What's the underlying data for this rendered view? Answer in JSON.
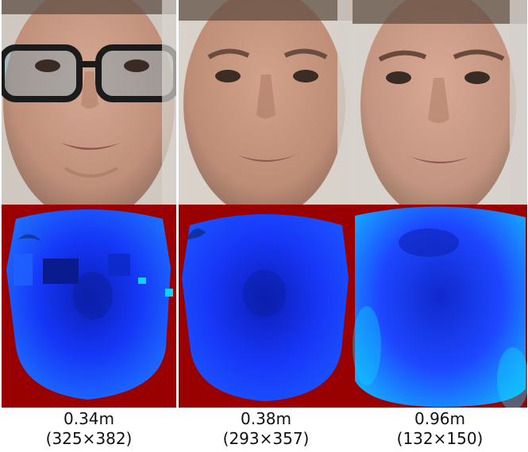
{
  "panels": [
    {
      "distance": "0.34m",
      "resolution": "(325×382)",
      "face": "face-with-glasses"
    },
    {
      "distance": "0.38m",
      "resolution": "(293×357)",
      "face": "face-close"
    },
    {
      "distance": "0.96m",
      "resolution": "(132×150)",
      "face": "face-far"
    }
  ],
  "colors": {
    "depth_background": "#990000",
    "depth_near": "#0033ff",
    "depth_far": "#00d0ff",
    "skin": "#c89a82",
    "wall": "#d8d4ce"
  }
}
